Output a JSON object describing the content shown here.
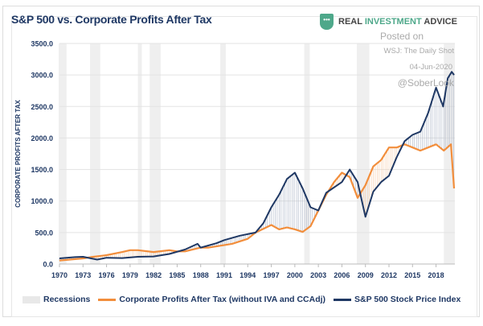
{
  "chart_data": {
    "type": "line",
    "title": "S&P 500 vs. Corporate Profits After Tax",
    "ylabel": "CORPORATE PROFITS AFTER TAX",
    "xlabel": "",
    "xlim": [
      1970,
      2020.4
    ],
    "ylim": [
      0,
      3500
    ],
    "grid": true,
    "legend_placement": "bottom",
    "x_ticks": [
      "1970",
      "1973",
      "1976",
      "1979",
      "1982",
      "1985",
      "1988",
      "1991",
      "1994",
      "1997",
      "2000",
      "2003",
      "2006",
      "2009",
      "2012",
      "2015",
      "2018"
    ],
    "y_ticks": [
      "0.0",
      "500.0",
      "1000.0",
      "1500.0",
      "2000.0",
      "2500.0",
      "3000.0",
      "3500.0"
    ],
    "recessions": [
      [
        1969.9,
        1970.9
      ],
      [
        1973.9,
        1975.2
      ],
      [
        1980.0,
        1980.5
      ],
      [
        1981.5,
        1982.9
      ],
      [
        1990.5,
        1991.2
      ],
      [
        2001.2,
        2001.9
      ],
      [
        2007.9,
        2009.5
      ],
      [
        2019.0,
        2020.4
      ]
    ],
    "recessions_label": "Recessions",
    "series": [
      {
        "name": "Corporate Profits After Tax (without IVA and CCAdj)",
        "color": "#f28e3c",
        "x": [
          1970,
          1973,
          1974,
          1976,
          1978,
          1979,
          1980,
          1982,
          1984,
          1985,
          1986,
          1988,
          1989,
          1990,
          1992,
          1994,
          1995,
          1996,
          1997,
          1998,
          1999,
          2000,
          2001,
          2002,
          2003,
          2004,
          2005,
          2006,
          2007,
          2008,
          2009,
          2010,
          2011,
          2012,
          2013,
          2014,
          2015,
          2016,
          2017,
          2018,
          2019,
          2019.9,
          2020.3
        ],
        "y": [
          55,
          90,
          110,
          140,
          190,
          220,
          220,
          190,
          220,
          200,
          200,
          260,
          260,
          280,
          320,
          400,
          500,
          560,
          620,
          550,
          580,
          550,
          510,
          600,
          850,
          1100,
          1300,
          1450,
          1380,
          1050,
          1250,
          1550,
          1650,
          1850,
          1850,
          1900,
          1850,
          1800,
          1850,
          1900,
          1800,
          1900,
          1200
        ]
      },
      {
        "name": "S&P 500 Stock Price Index",
        "color": "#1f3864",
        "x": [
          1970,
          1972,
          1973,
          1974.8,
          1976,
          1978,
          1980,
          1982,
          1984,
          1986,
          1987.6,
          1988,
          1990,
          1991,
          1993,
          1995,
          1996,
          1997,
          1998,
          1999,
          2000,
          2001,
          2002,
          2003,
          2004,
          2006,
          2007,
          2008,
          2009,
          2010,
          2011,
          2012,
          2013,
          2014,
          2015,
          2016,
          2017,
          2018,
          2018.9,
          2019.5,
          2020.0,
          2020.3
        ],
        "y": [
          90,
          110,
          115,
          70,
          100,
          95,
          115,
          120,
          160,
          230,
          320,
          260,
          330,
          380,
          450,
          500,
          650,
          900,
          1100,
          1350,
          1450,
          1200,
          900,
          850,
          1130,
          1300,
          1500,
          1300,
          750,
          1150,
          1300,
          1400,
          1700,
          1950,
          2050,
          2100,
          2400,
          2800,
          2500,
          2950,
          3050,
          3000
        ]
      }
    ]
  },
  "header": {
    "logo_text_1": "REAL",
    "logo_text_2": "INVESTMENT",
    "logo_text_3": "ADVICE"
  },
  "annotations": {
    "posted": "Posted on",
    "source": "WSJ: The Daily Shot",
    "date": "04-Jun-2020",
    "handle": "@SoberLook"
  }
}
